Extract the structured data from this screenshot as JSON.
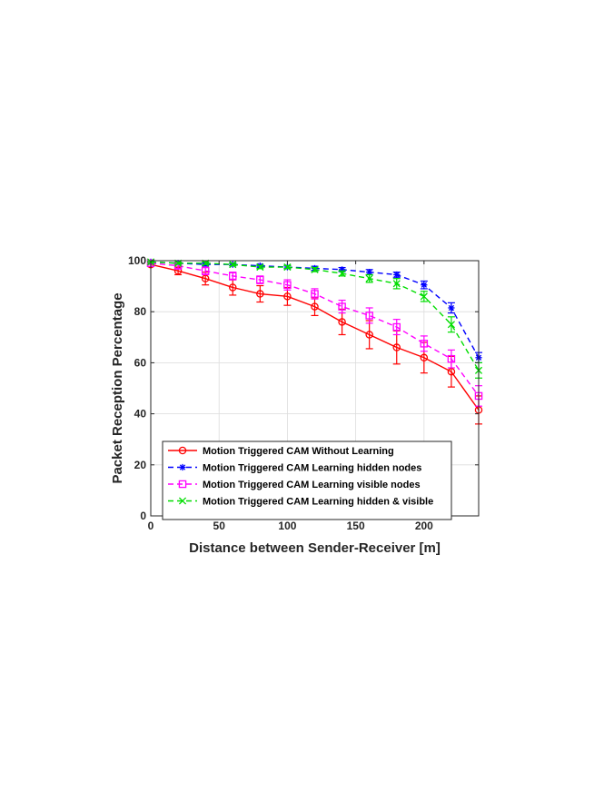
{
  "chart_data": {
    "type": "line",
    "xlabel": "Distance between Sender-Receiver [m]",
    "ylabel": "Packet Reception Percentage",
    "xlim": [
      0,
      240
    ],
    "ylim": [
      0,
      100
    ],
    "xticks": [
      0,
      50,
      100,
      150,
      200
    ],
    "yticks": [
      0,
      20,
      40,
      60,
      80,
      100
    ],
    "grid": true,
    "legend_position": "bottom-left",
    "x": [
      0,
      20,
      40,
      60,
      80,
      100,
      120,
      140,
      160,
      180,
      200,
      220,
      240
    ],
    "series": [
      {
        "name": "Motion Triggered CAM Without Learning",
        "color": "#ff0000",
        "line_style": "solid",
        "marker": "circle",
        "values": [
          98.5,
          96,
          93,
          89.5,
          87,
          86,
          82,
          76,
          71,
          66,
          62,
          56.5,
          41.5
        ],
        "errors": [
          0.8,
          1.5,
          2.5,
          3,
          3.2,
          3.5,
          3.5,
          5,
          5.5,
          6.5,
          6,
          6,
          5.5
        ]
      },
      {
        "name": "Motion Triggered CAM Learning hidden nodes",
        "color": "#0000ff",
        "line_style": "dashed",
        "marker": "asterisk",
        "values": [
          99.5,
          99,
          98.5,
          98.5,
          98,
          97.5,
          97,
          96.5,
          95.5,
          94.5,
          90.5,
          81.5,
          62
        ],
        "errors": [
          0.3,
          0.4,
          0.5,
          0.5,
          0.5,
          0.6,
          0.8,
          0.8,
          1,
          1,
          1.5,
          2,
          2
        ]
      },
      {
        "name": "Motion Triggered CAM Learning visible nodes",
        "color": "#ff00ff",
        "line_style": "dashed",
        "marker": "square",
        "values": [
          99,
          98,
          96,
          94,
          92.5,
          90.5,
          87,
          82,
          78.5,
          74,
          67.5,
          61.5,
          47
        ],
        "errors": [
          0.5,
          1,
          1.5,
          1.5,
          1.5,
          2,
          2,
          2.5,
          3,
          3,
          3,
          3.5,
          4
        ]
      },
      {
        "name": "Motion Triggered CAM Learning hidden & visible",
        "color": "#00dd00",
        "line_style": "dashed",
        "marker": "x",
        "values": [
          99.5,
          99,
          99,
          98.5,
          97.5,
          97.5,
          96.5,
          95,
          93,
          91,
          86,
          75,
          57
        ],
        "errors": [
          0.3,
          0.4,
          0.5,
          0.5,
          0.6,
          0.6,
          0.8,
          1,
          1.5,
          2,
          2,
          3,
          3
        ]
      }
    ]
  }
}
